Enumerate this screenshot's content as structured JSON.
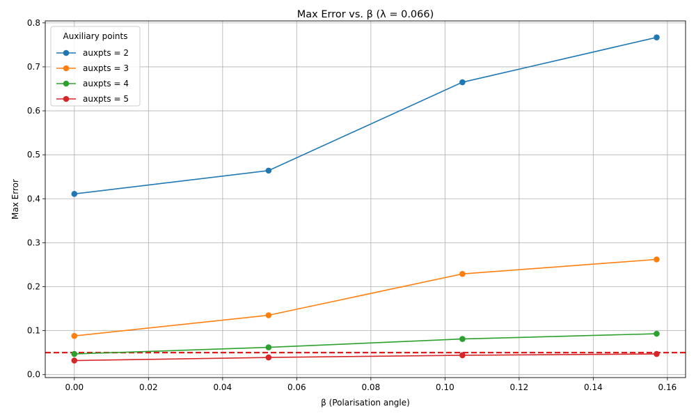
{
  "chart_data": {
    "type": "line",
    "title": "Max Error vs. β (λ = 0.066)",
    "xlabel": "β (Polarisation angle)",
    "ylabel": "Max Error",
    "xlim": [
      -0.00785,
      0.1649
    ],
    "ylim": [
      -0.0068,
      0.8045
    ],
    "xticks": [
      0.0,
      0.02,
      0.04,
      0.06,
      0.08,
      0.1,
      0.12,
      0.14,
      0.16
    ],
    "xtick_labels": [
      "0.00",
      "0.02",
      "0.04",
      "0.06",
      "0.08",
      "0.10",
      "0.12",
      "0.14",
      "0.16"
    ],
    "yticks": [
      0.0,
      0.1,
      0.2,
      0.3,
      0.4,
      0.5,
      0.6,
      0.7,
      0.8
    ],
    "ytick_labels": [
      "0.0",
      "0.1",
      "0.2",
      "0.3",
      "0.4",
      "0.5",
      "0.6",
      "0.7",
      "0.8"
    ],
    "grid": true,
    "legend": {
      "title": "Auxiliary points",
      "placement": "top-left"
    },
    "x": [
      0.0,
      0.0524,
      0.1047,
      0.1571
    ],
    "series": [
      {
        "name": "auxpts = 2",
        "color": "#1f77b4",
        "values": [
          0.411,
          0.464,
          0.665,
          0.767
        ]
      },
      {
        "name": "auxpts = 3",
        "color": "#ff7f0e",
        "values": [
          0.088,
          0.135,
          0.229,
          0.262
        ]
      },
      {
        "name": "auxpts = 4",
        "color": "#2ca02c",
        "values": [
          0.047,
          0.062,
          0.081,
          0.093
        ]
      },
      {
        "name": "auxpts = 5",
        "color": "#d62728",
        "values": [
          0.032,
          0.039,
          0.044,
          0.047
        ]
      }
    ],
    "reference_line": {
      "y": 0.05,
      "color": "#e41a1c",
      "style": "dashed"
    }
  }
}
